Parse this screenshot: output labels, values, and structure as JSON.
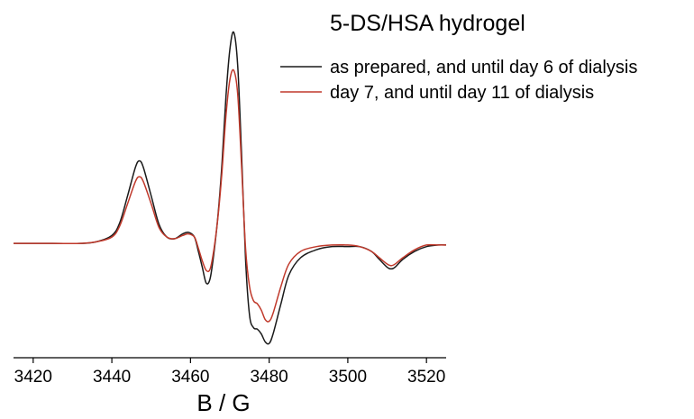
{
  "chart_data": {
    "type": "line",
    "title": "5-DS/HSA hydrogel",
    "xlabel": "B / G",
    "ylabel": "",
    "xlim": [
      3415,
      3525
    ],
    "ylim": [
      -0.72,
      1.42
    ],
    "xticks": [
      3420,
      3440,
      3460,
      3480,
      3500,
      3520
    ],
    "x_tick_labels": [
      "3420",
      "3440",
      "3460",
      "3480",
      "3500",
      "3520"
    ],
    "grid": false,
    "legend_position": "top-right",
    "series": [
      {
        "name": "as prepared, and until day 6 of dialysis",
        "color": "#1a1a1a",
        "points": [
          [
            3415,
            0.0
          ],
          [
            3425,
            0.0
          ],
          [
            3432,
            0.0
          ],
          [
            3436,
            0.01
          ],
          [
            3440,
            0.05
          ],
          [
            3442,
            0.13
          ],
          [
            3444,
            0.3
          ],
          [
            3446,
            0.48
          ],
          [
            3447,
            0.52
          ],
          [
            3448,
            0.48
          ],
          [
            3450,
            0.3
          ],
          [
            3452,
            0.12
          ],
          [
            3454,
            0.04
          ],
          [
            3456,
            0.03
          ],
          [
            3458,
            0.06
          ],
          [
            3459.5,
            0.07
          ],
          [
            3461,
            0.04
          ],
          [
            3462,
            -0.05
          ],
          [
            3463,
            -0.15
          ],
          [
            3464,
            -0.25
          ],
          [
            3465,
            -0.22
          ],
          [
            3466,
            -0.05
          ],
          [
            3467,
            0.18
          ],
          [
            3468,
            0.5
          ],
          [
            3469,
            0.92
          ],
          [
            3470,
            1.22
          ],
          [
            3471,
            1.33
          ],
          [
            3472,
            1.12
          ],
          [
            3473,
            0.55
          ],
          [
            3474,
            -0.1
          ],
          [
            3475,
            -0.45
          ],
          [
            3476,
            -0.53
          ],
          [
            3477,
            -0.54
          ],
          [
            3478,
            -0.57
          ],
          [
            3479,
            -0.62
          ],
          [
            3480,
            -0.63
          ],
          [
            3481,
            -0.57
          ],
          [
            3483,
            -0.38
          ],
          [
            3485,
            -0.2
          ],
          [
            3488,
            -0.09
          ],
          [
            3492,
            -0.04
          ],
          [
            3496,
            -0.02
          ],
          [
            3500,
            -0.02
          ],
          [
            3503,
            -0.02
          ],
          [
            3506,
            -0.05
          ],
          [
            3508,
            -0.1
          ],
          [
            3510,
            -0.15
          ],
          [
            3511,
            -0.16
          ],
          [
            3512,
            -0.15
          ],
          [
            3514,
            -0.1
          ],
          [
            3517,
            -0.05
          ],
          [
            3520,
            -0.02
          ],
          [
            3523,
            -0.01
          ],
          [
            3525,
            -0.01
          ]
        ]
      },
      {
        "name": "day 7, and until day 11 of dialysis",
        "color": "#c0392b",
        "points": [
          [
            3415,
            0.0
          ],
          [
            3425,
            0.0
          ],
          [
            3432,
            0.0
          ],
          [
            3436,
            0.01
          ],
          [
            3440,
            0.04
          ],
          [
            3442,
            0.11
          ],
          [
            3444,
            0.25
          ],
          [
            3446,
            0.39
          ],
          [
            3447,
            0.42
          ],
          [
            3448,
            0.39
          ],
          [
            3450,
            0.25
          ],
          [
            3452,
            0.1
          ],
          [
            3454,
            0.04
          ],
          [
            3456,
            0.03
          ],
          [
            3458,
            0.05
          ],
          [
            3459.5,
            0.06
          ],
          [
            3461,
            0.04
          ],
          [
            3462,
            -0.03
          ],
          [
            3463,
            -0.11
          ],
          [
            3464,
            -0.17
          ],
          [
            3465,
            -0.16
          ],
          [
            3466,
            -0.03
          ],
          [
            3467,
            0.17
          ],
          [
            3468,
            0.45
          ],
          [
            3469,
            0.8
          ],
          [
            3470,
            1.03
          ],
          [
            3471,
            1.09
          ],
          [
            3472,
            0.94
          ],
          [
            3473,
            0.48
          ],
          [
            3474,
            -0.03
          ],
          [
            3475,
            -0.27
          ],
          [
            3476,
            -0.36
          ],
          [
            3477,
            -0.38
          ],
          [
            3478,
            -0.42
          ],
          [
            3479,
            -0.48
          ],
          [
            3480,
            -0.49
          ],
          [
            3481,
            -0.44
          ],
          [
            3483,
            -0.27
          ],
          [
            3485,
            -0.13
          ],
          [
            3488,
            -0.05
          ],
          [
            3492,
            -0.02
          ],
          [
            3496,
            -0.01
          ],
          [
            3500,
            -0.01
          ],
          [
            3503,
            -0.02
          ],
          [
            3506,
            -0.05
          ],
          [
            3508,
            -0.09
          ],
          [
            3510,
            -0.13
          ],
          [
            3511,
            -0.14
          ],
          [
            3512,
            -0.13
          ],
          [
            3514,
            -0.09
          ],
          [
            3517,
            -0.04
          ],
          [
            3520,
            -0.01
          ],
          [
            3523,
            -0.01
          ],
          [
            3525,
            -0.01
          ]
        ]
      }
    ]
  }
}
